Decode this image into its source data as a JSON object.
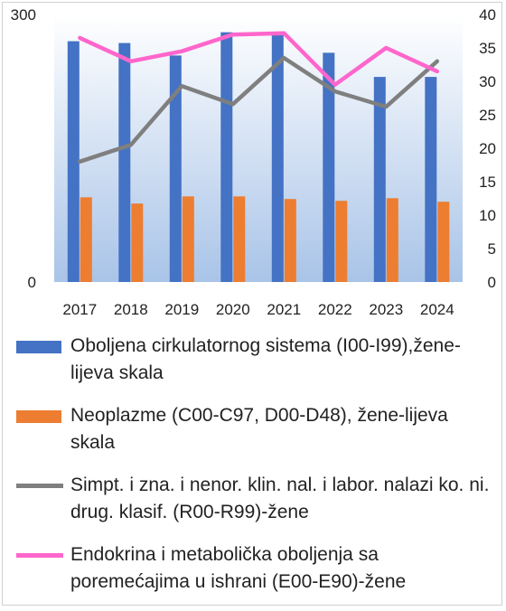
{
  "chart_data": {
    "type": "bar+line",
    "categories": [
      "2017",
      "2018",
      "2019",
      "2020",
      "2021",
      "2022",
      "2023",
      "2024"
    ],
    "left_axis": {
      "ylim": [
        0,
        300
      ],
      "ticks": [
        "0",
        "300"
      ]
    },
    "right_axis": {
      "ylim": [
        0,
        40
      ],
      "ticks": [
        "0",
        "5",
        "10",
        "15",
        "20",
        "25",
        "30",
        "35",
        "40"
      ]
    },
    "series": [
      {
        "name": "Oboljena cirkulatornog sistema (I00-I99),žene-lijeva skala",
        "type": "bar",
        "axis": "left",
        "color": "#4472C4",
        "values": [
          270,
          268,
          254,
          280,
          278,
          257,
          230,
          230
        ]
      },
      {
        "name": "Neoplazme (C00-C97, D00-D48), žene-lijeva skala",
        "type": "bar",
        "axis": "left",
        "color": "#ED7D31",
        "values": [
          95,
          88,
          96,
          96,
          93,
          91,
          94,
          90
        ]
      },
      {
        "name": "Simpt. i zna. i nenor. klin. nal. i labor. nalazi ko. ni. drug. klasif. (R00-R99)-žene",
        "type": "line",
        "axis": "right",
        "color": "#7F7F7F",
        "values": [
          18,
          20.5,
          29.3,
          26.6,
          33.5,
          28.5,
          26.2,
          33
        ]
      },
      {
        "name": "Endokrina i metabolička oboljenja sa poremećajima u ishrani (E00-E90)-žene",
        "type": "line",
        "axis": "right",
        "color": "#FF66CC",
        "values": [
          36.5,
          33,
          34.5,
          37,
          37.2,
          29.5,
          35,
          31.5
        ]
      }
    ],
    "grid": false,
    "plot_background": "gradient light blue",
    "legend_position": "bottom"
  }
}
